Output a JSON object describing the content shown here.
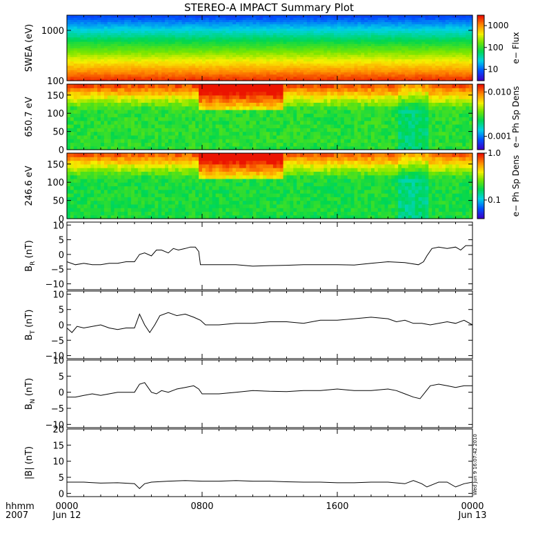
{
  "title": "STEREO-A IMPACT Summary Plot",
  "timestamp_label": "Wed Jun  9 16:07:42 2010",
  "time_axis": {
    "left_label_top": "hhmm",
    "left_label_bottom": "2007",
    "ticks": [
      {
        "hour": 0,
        "top": "0000",
        "bottom": "Jun 12"
      },
      {
        "hour": 8,
        "top": "0800",
        "bottom": ""
      },
      {
        "hour": 16,
        "top": "1600",
        "bottom": ""
      },
      {
        "hour": 24,
        "top": "0000",
        "bottom": "Jun 13"
      }
    ],
    "range_hours": [
      0,
      24
    ]
  },
  "chart_data": [
    {
      "type": "heatmap",
      "ylabel": "SWEA (eV)",
      "yscale": "log",
      "ylim": [
        100,
        2000
      ],
      "yticks": [
        100,
        1000
      ],
      "ytick_labels": [
        "100",
        "1000"
      ],
      "colorbar": {
        "label": "e− Flux",
        "scale": "log",
        "range": [
          3,
          3000
        ],
        "ticks": [
          10,
          100,
          1000
        ],
        "tick_labels": [
          "10",
          "100",
          "1000"
        ]
      },
      "description_profile": "flux decreases with energy; high at 100 eV, low near 2000 eV"
    },
    {
      "type": "heatmap",
      "ylabel": "650.7 eV",
      "ylim": [
        0,
        180
      ],
      "yticks": [
        0,
        50,
        100,
        150
      ],
      "ytick_labels": [
        "0",
        "50",
        "100",
        "150"
      ],
      "colorbar": {
        "label": "e− Ph Sp Dens",
        "scale": "log",
        "range": [
          0.0005,
          0.015
        ],
        "ticks": [
          0.001,
          0.01
        ],
        "tick_labels": [
          "0.001",
          "0.010"
        ]
      }
    },
    {
      "type": "heatmap",
      "ylabel": "246.6 eV",
      "ylim": [
        0,
        180
      ],
      "yticks": [
        0,
        50,
        100,
        150
      ],
      "ytick_labels": [
        "0",
        "50",
        "100",
        "150"
      ],
      "colorbar": {
        "label": "e− Ph Sp Dens",
        "scale": "log",
        "range": [
          0.04,
          1.0
        ],
        "ticks": [
          0.1,
          1.0
        ],
        "tick_labels": [
          "0.1",
          "1.0"
        ]
      }
    },
    {
      "type": "line",
      "ylabel_main": "B",
      "ylabel_sub": "R",
      "ylabel_unit": "(nT)",
      "ylim": [
        -12,
        11
      ],
      "yticks": [
        -10,
        -5,
        0,
        5,
        10
      ],
      "ytick_labels": [
        "−10",
        "−5",
        "0",
        "5",
        "10"
      ],
      "x": [
        0,
        0.5,
        1,
        1.5,
        2,
        2.5,
        3,
        3.5,
        4,
        4.3,
        4.6,
        5,
        5.3,
        5.6,
        6,
        6.3,
        6.6,
        7,
        7.3,
        7.6,
        7.8,
        7.9,
        8.2,
        9,
        10,
        11,
        12,
        13,
        14,
        15,
        16,
        17,
        18,
        19,
        20,
        20.8,
        21.1,
        21.3,
        21.6,
        22,
        22.5,
        23,
        23.3,
        23.6,
        24
      ],
      "y": [
        -2.5,
        -3.5,
        -3,
        -3.5,
        -3.5,
        -3,
        -3,
        -2.5,
        -2.5,
        0,
        0.5,
        -0.5,
        1.5,
        1.5,
        0.5,
        2,
        1.5,
        2,
        2.5,
        2.5,
        1,
        -3.5,
        -3.5,
        -3.5,
        -3.5,
        -4,
        -3.8,
        -3.7,
        -3.5,
        -3.5,
        -3.5,
        -3.6,
        -3,
        -2.5,
        -2.8,
        -3.5,
        -2.5,
        -0.5,
        2,
        2.5,
        2,
        2.5,
        1.5,
        3,
        3
      ]
    },
    {
      "type": "line",
      "ylabel_main": "B",
      "ylabel_sub": "T",
      "ylabel_unit": "(nT)",
      "ylim": [
        -11,
        11
      ],
      "yticks": [
        -10,
        -5,
        0,
        5,
        10
      ],
      "ytick_labels": [
        "−10",
        "−5",
        "0",
        "5",
        "10"
      ],
      "x": [
        0,
        0.3,
        0.6,
        1,
        1.5,
        2,
        2.5,
        3,
        3.5,
        4,
        4.3,
        4.6,
        4.9,
        5.2,
        5.5,
        6,
        6.5,
        7,
        7.5,
        7.9,
        8.2,
        9,
        10,
        11,
        12,
        13,
        14,
        15,
        16,
        17,
        18,
        19,
        19.5,
        20,
        20.5,
        21,
        21.5,
        22,
        22.5,
        23,
        23.5,
        24
      ],
      "y": [
        -1,
        -2.5,
        -0.5,
        -1,
        -0.5,
        0,
        -1,
        -1.5,
        -1,
        -1,
        3.5,
        0,
        -2.5,
        0,
        3,
        4,
        3,
        3.5,
        2.5,
        1.5,
        0,
        0,
        0.5,
        0.5,
        1,
        1,
        0.5,
        1.5,
        1.5,
        2,
        2.5,
        2,
        1,
        1.5,
        0.5,
        0.5,
        0,
        0.5,
        1,
        0.5,
        1.5,
        0
      ]
    },
    {
      "type": "line",
      "ylabel_main": "B",
      "ylabel_sub": "N",
      "ylabel_unit": "(nT)",
      "ylim": [
        -11,
        10
      ],
      "yticks": [
        -10,
        -5,
        0,
        5,
        10
      ],
      "ytick_labels": [
        "−10",
        "−5",
        "0",
        "5",
        "10"
      ],
      "x": [
        0,
        0.5,
        1,
        1.5,
        2,
        2.5,
        3,
        3.5,
        4,
        4.3,
        4.6,
        5,
        5.3,
        5.6,
        6,
        6.5,
        7,
        7.5,
        7.8,
        8,
        8.3,
        9,
        10,
        11,
        12,
        13,
        14,
        15,
        16,
        17,
        18,
        19,
        19.5,
        20,
        20.5,
        20.9,
        21.2,
        21.5,
        22,
        22.5,
        23,
        23.5,
        24
      ],
      "y": [
        -1.5,
        -1.5,
        -1,
        -0.5,
        -1,
        -0.5,
        0,
        0,
        0,
        2.5,
        3,
        0,
        -0.5,
        0.5,
        0,
        1,
        1.5,
        2,
        1,
        -0.5,
        -0.5,
        -0.5,
        0,
        0.5,
        0.3,
        0.2,
        0.5,
        0.5,
        1,
        0.5,
        0.5,
        1,
        0.5,
        -0.5,
        -1.5,
        -2,
        0,
        2,
        2.5,
        2,
        1.5,
        2,
        2
      ]
    },
    {
      "type": "line",
      "ylabel_main": "|B| (nT)",
      "ylim": [
        -1,
        20
      ],
      "yticks": [
        0,
        5,
        10,
        15,
        20
      ],
      "ytick_labels": [
        "0",
        "5",
        "10",
        "15",
        "20"
      ],
      "x": [
        0,
        1,
        2,
        3,
        4,
        4.3,
        4.6,
        5,
        6,
        7,
        8,
        9,
        10,
        11,
        12,
        13,
        14,
        15,
        16,
        17,
        18,
        19,
        20,
        20.5,
        21,
        21.3,
        22,
        22.5,
        23,
        23.5,
        24
      ],
      "y": [
        3.5,
        3.5,
        3.2,
        3.3,
        3,
        1.5,
        3,
        3.5,
        3.8,
        4,
        3.8,
        3.8,
        4,
        3.8,
        3.8,
        3.6,
        3.5,
        3.5,
        3.3,
        3.3,
        3.5,
        3.5,
        3,
        4,
        3,
        2,
        3.5,
        3.5,
        2,
        3,
        3.5
      ]
    }
  ]
}
